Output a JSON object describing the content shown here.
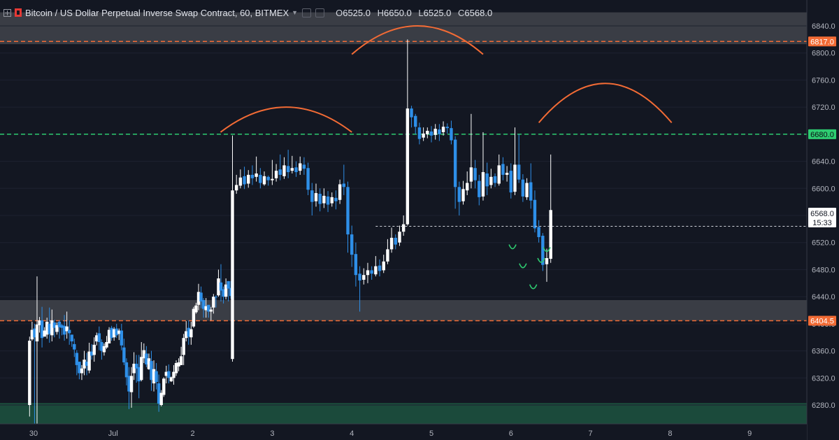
{
  "header": {
    "title": "Bitcoin / US Dollar Perpetual Inverse Swap Contract, 60, BITMEX",
    "ohlc": [
      {
        "k": "O",
        "v": "6525.0"
      },
      {
        "k": "H",
        "v": "6650.0"
      },
      {
        "k": "L",
        "v": "6525.0"
      },
      {
        "k": "C",
        "v": "6568.0"
      }
    ]
  },
  "chart_data": {
    "type": "candlestick",
    "ylim": [
      6250,
      6860
    ],
    "x_range": [
      0,
      10.3
    ],
    "y_ticks": [
      "6840.0",
      "6800.0",
      "6760.0",
      "6720.0",
      "6680.0",
      "6640.0",
      "6600.0",
      "6560.0",
      "6520.0",
      "6480.0",
      "6440.0",
      "6400.0",
      "6360.0",
      "6320.0",
      "6280.0"
    ],
    "y_tick_values": [
      6840,
      6800,
      6760,
      6720,
      6680,
      6640,
      6600,
      6560,
      6520,
      6480,
      6440,
      6400,
      6360,
      6320,
      6280
    ],
    "x_ticks": [
      {
        "t": 0,
        "label": "30"
      },
      {
        "t": 1,
        "label": "Jul"
      },
      {
        "t": 2,
        "label": "2"
      },
      {
        "t": 3,
        "label": "3"
      },
      {
        "t": 4,
        "label": "4"
      },
      {
        "t": 5,
        "label": "5"
      },
      {
        "t": 6,
        "label": "6"
      },
      {
        "t": 7,
        "label": "7"
      },
      {
        "t": 8,
        "label": "8"
      },
      {
        "t": 9,
        "label": "9"
      }
    ],
    "zones": [
      {
        "y1": 6813,
        "y2": 6860,
        "color": "#3a3d45"
      },
      {
        "y1": 6404.5,
        "y2": 6435,
        "color": "#3a3d45"
      },
      {
        "y1": 6250,
        "y2": 6283,
        "color": "#1b4a3b"
      }
    ],
    "hlines": [
      {
        "value": 6817.0,
        "label": "6817.0",
        "color": "#f26b35"
      },
      {
        "value": 6680.0,
        "label": "6680.0",
        "color": "#2ecc71"
      },
      {
        "value": 6404.5,
        "label": "6404.5",
        "color": "#f26b35"
      }
    ],
    "last_price": {
      "value": 6568.0,
      "label": "6568.0",
      "countdown": "15:33"
    },
    "arcs": [
      {
        "t1": 2.35,
        "t2": 4.0,
        "base": 6683,
        "top": 6720
      },
      {
        "t1": 4.0,
        "t2": 5.65,
        "base": 6798,
        "top": 6840
      },
      {
        "t1": 6.35,
        "t2": 8.02,
        "base": 6697,
        "top": 6755
      }
    ],
    "smiles": [
      [
        6.02,
        6517
      ],
      [
        6.15,
        6489
      ],
      [
        6.28,
        6458
      ],
      [
        6.38,
        6497
      ],
      [
        6.45,
        6513
      ]
    ],
    "candles": [
      [
        -0.1,
        6280,
        6375,
        6263,
        6381
      ],
      [
        -0.05,
        6377,
        6391,
        6375,
        6403
      ],
      [
        0.0,
        6393,
        6380,
        6250,
        6400
      ],
      [
        0.05,
        6374,
        6399,
        6240,
        6470
      ],
      [
        0.1,
        6398,
        6405,
        6387,
        6410
      ],
      [
        0.15,
        6405,
        6379,
        6365,
        6425
      ],
      [
        0.2,
        6381,
        6390,
        6382,
        6395
      ],
      [
        0.25,
        6384,
        6403,
        6378,
        6409
      ],
      [
        0.3,
        6400,
        6385,
        6372,
        6424
      ],
      [
        0.35,
        6383,
        6405,
        6374,
        6421
      ],
      [
        0.4,
        6402,
        6394,
        6380,
        6406
      ],
      [
        0.45,
        6388,
        6398,
        6384,
        6402
      ],
      [
        0.5,
        6403,
        6395,
        6378,
        6405
      ],
      [
        0.55,
        6398,
        6394,
        6383,
        6400
      ],
      [
        0.6,
        6397,
        6384,
        6375,
        6413
      ],
      [
        0.65,
        6389,
        6396,
        6378,
        6418
      ],
      [
        0.7,
        6391,
        6386,
        6369,
        6405
      ],
      [
        0.75,
        6384,
        6374,
        6366,
        6378
      ],
      [
        0.8,
        6370,
        6362,
        6351,
        6378
      ],
      [
        0.85,
        6357,
        6339,
        6324,
        6361
      ],
      [
        0.9,
        6344,
        6327,
        6318,
        6341
      ],
      [
        0.95,
        6327,
        6334,
        6317,
        6339
      ],
      [
        1.0,
        6334,
        6347,
        6324,
        6360
      ],
      [
        1.05,
        6344,
        6338,
        6324,
        6357
      ],
      [
        1.1,
        6331,
        6359,
        6327,
        6372
      ],
      [
        1.15,
        6359,
        6353,
        6347,
        6370
      ],
      [
        1.2,
        6354,
        6369,
        6344,
        6380
      ],
      [
        1.25,
        6374,
        6383,
        6368,
        6387
      ],
      [
        1.3,
        6386,
        6373,
        6361,
        6396
      ],
      [
        1.35,
        6373,
        6360,
        6347,
        6377
      ],
      [
        1.4,
        6358,
        6367,
        6353,
        6371
      ],
      [
        1.45,
        6365,
        6373,
        6363,
        6382
      ],
      [
        1.5,
        6371,
        6391,
        6371,
        6395
      ],
      [
        1.55,
        6394,
        6379,
        6375,
        6397
      ],
      [
        1.6,
        6380,
        6392,
        6375,
        6395
      ],
      [
        1.65,
        6393,
        6383,
        6379,
        6400
      ],
      [
        1.7,
        6385,
        6390,
        6376,
        6393
      ],
      [
        1.75,
        6390,
        6368,
        6361,
        6400
      ],
      [
        1.8,
        6365,
        6343,
        6339,
        6378
      ],
      [
        1.85,
        6343,
        6321,
        6309,
        6349
      ],
      [
        1.9,
        6323,
        6300,
        6274,
        6336
      ],
      [
        1.95,
        6299,
        6323,
        6276,
        6336
      ],
      [
        2.0,
        6327,
        6341,
        6317,
        6358
      ],
      [
        2.05,
        6341,
        6334,
        6313,
        6354
      ],
      [
        2.1,
        6336,
        6315,
        6290,
        6354
      ],
      [
        2.15,
        6317,
        6351,
        6315,
        6373
      ],
      [
        2.2,
        6349,
        6361,
        6342,
        6371
      ],
      [
        2.25,
        6356,
        6340,
        6336,
        6367
      ],
      [
        2.3,
        6333,
        6349,
        6332,
        6356
      ],
      [
        2.35,
        6345,
        6317,
        6301,
        6360
      ],
      [
        2.4,
        6312,
        6333,
        6300,
        6346
      ],
      [
        2.45,
        6330,
        6314,
        6303,
        6342
      ],
      [
        2.5,
        6312,
        6282,
        6270,
        6325
      ],
      [
        2.55,
        6280,
        6298,
        6278,
        6302
      ],
      [
        2.6,
        6295,
        6319,
        6292,
        6321
      ],
      [
        2.65,
        6323,
        6329,
        6312,
        6338
      ],
      [
        2.7,
        6330,
        6320,
        6312,
        6340
      ],
      [
        2.75,
        6315,
        6321,
        6314,
        6322
      ],
      [
        2.8,
        6320,
        6329,
        6310,
        6339
      ],
      [
        2.85,
        6327,
        6342,
        6323,
        6346
      ],
      [
        2.9,
        6337,
        6343,
        6330,
        6349
      ],
      [
        2.95,
        6339,
        6352,
        6339,
        6366
      ],
      [
        3.0,
        6354,
        6379,
        6339,
        6385
      ],
      [
        3.05,
        6379,
        6389,
        6374,
        6404
      ],
      [
        3.1,
        6394,
        6381,
        6369,
        6405
      ],
      [
        3.15,
        6380,
        6392,
        6369,
        6403
      ],
      [
        3.2,
        6396,
        6422,
        6394,
        6425
      ],
      [
        3.25,
        6417,
        6427,
        6415,
        6431
      ],
      [
        3.3,
        6428,
        6447,
        6420,
        6459
      ],
      [
        3.35,
        6446,
        6433,
        6423,
        6455
      ],
      [
        3.4,
        6435,
        6422,
        6409,
        6438
      ],
      [
        3.45,
        6420,
        6426,
        6409,
        6438
      ],
      [
        3.5,
        6428,
        6418,
        6409,
        6425
      ],
      [
        3.55,
        6418,
        6421,
        6405,
        6425
      ],
      [
        3.6,
        6424,
        6440,
        6415,
        6444
      ],
      [
        3.65,
        6440,
        6439,
        6424,
        6442
      ],
      [
        3.7,
        6442,
        6467,
        6440,
        6480
      ],
      [
        3.75,
        6461,
        6449,
        6433,
        6488
      ],
      [
        3.8,
        6451,
        6440,
        6430,
        6455
      ],
      [
        3.85,
        6440,
        6458,
        6436,
        6467
      ],
      [
        3.9,
        6463,
        6452,
        6433,
        6463
      ],
      [
        3.95,
        6453,
        6441,
        6437,
        6463
      ]
    ],
    "candles_b": [
      [
        2.5,
        6348,
        6597,
        6344,
        6678
      ],
      [
        2.55,
        6597,
        6605,
        6592,
        6620
      ],
      [
        2.6,
        6604,
        6616,
        6600,
        6628
      ],
      [
        2.65,
        6618,
        6606,
        6599,
        6632
      ],
      [
        2.7,
        6607,
        6620,
        6601,
        6627
      ],
      [
        2.75,
        6620,
        6615,
        6605,
        6634
      ],
      [
        2.8,
        6617,
        6622,
        6610,
        6647
      ],
      [
        2.85,
        6620,
        6608,
        6600,
        6630
      ],
      [
        2.9,
        6606,
        6618,
        6604,
        6625
      ],
      [
        2.95,
        6617,
        6612,
        6604,
        6619
      ],
      [
        3.0,
        6612,
        6614,
        6605,
        6642
      ],
      [
        3.05,
        6615,
        6626,
        6610,
        6636
      ],
      [
        3.1,
        6628,
        6620,
        6612,
        6650
      ],
      [
        3.15,
        6618,
        6634,
        6614,
        6646
      ],
      [
        3.2,
        6633,
        6624,
        6615,
        6657
      ],
      [
        3.25,
        6626,
        6630,
        6622,
        6648
      ],
      [
        3.3,
        6631,
        6624,
        6617,
        6640
      ],
      [
        3.35,
        6626,
        6637,
        6620,
        6647
      ],
      [
        3.4,
        6635,
        6629,
        6620,
        6646
      ],
      [
        3.45,
        6630,
        6598,
        6590,
        6638
      ],
      [
        3.5,
        6597,
        6580,
        6560,
        6608
      ],
      [
        3.55,
        6581,
        6593,
        6573,
        6607
      ],
      [
        3.6,
        6592,
        6577,
        6566,
        6600
      ],
      [
        3.65,
        6578,
        6589,
        6571,
        6600
      ],
      [
        3.7,
        6588,
        6576,
        6565,
        6596
      ],
      [
        3.75,
        6578,
        6587,
        6573,
        6594
      ],
      [
        3.8,
        6586,
        6581,
        6569,
        6597
      ],
      [
        3.85,
        6583,
        6606,
        6577,
        6613
      ],
      [
        3.9,
        6607,
        6602,
        6590,
        6635
      ],
      [
        3.95,
        6602,
        6532,
        6505,
        6610
      ],
      [
        4.0,
        6532,
        6502,
        6484,
        6545
      ],
      [
        4.05,
        6503,
        6472,
        6455,
        6520
      ],
      [
        4.1,
        6474,
        6464,
        6418,
        6485
      ],
      [
        4.15,
        6465,
        6472,
        6458,
        6482
      ],
      [
        4.2,
        6472,
        6479,
        6460,
        6490
      ],
      [
        4.25,
        6479,
        6474,
        6465,
        6485
      ],
      [
        4.3,
        6473,
        6485,
        6470,
        6500
      ],
      [
        4.35,
        6486,
        6478,
        6470,
        6495
      ],
      [
        4.4,
        6479,
        6492,
        6475,
        6502
      ],
      [
        4.45,
        6492,
        6510,
        6488,
        6525
      ],
      [
        4.5,
        6510,
        6527,
        6505,
        6542
      ],
      [
        4.55,
        6527,
        6517,
        6510,
        6532
      ],
      [
        4.6,
        6520,
        6536,
        6515,
        6545
      ],
      [
        4.65,
        6536,
        6547,
        6530,
        6560
      ],
      [
        4.7,
        6547,
        6718,
        6545,
        6820
      ],
      [
        4.75,
        6718,
        6705,
        6690,
        6722
      ],
      [
        4.8,
        6707,
        6691,
        6680,
        6710
      ],
      [
        4.85,
        6690,
        6673,
        6665,
        6697
      ],
      [
        4.9,
        6675,
        6681,
        6670,
        6690
      ],
      [
        4.95,
        6680,
        6685,
        6674,
        6690
      ],
      [
        5.0,
        6684,
        6678,
        6668,
        6692
      ],
      [
        5.05,
        6679,
        6688,
        6672,
        6695
      ],
      [
        5.1,
        6687,
        6680,
        6670,
        6695
      ],
      [
        5.15,
        6683,
        6691,
        6678,
        6699
      ],
      [
        5.2,
        6691,
        6689,
        6681,
        6696
      ],
      [
        5.25,
        6689,
        6671,
        6665,
        6700
      ],
      [
        5.3,
        6672,
        6602,
        6570,
        6677
      ],
      [
        5.35,
        6602,
        6580,
        6560,
        6610
      ],
      [
        5.4,
        6581,
        6599,
        6576,
        6611
      ],
      [
        5.45,
        6597,
        6608,
        6590,
        6625
      ],
      [
        5.5,
        6610,
        6631,
        6600,
        6710
      ],
      [
        5.55,
        6630,
        6612,
        6600,
        6642
      ],
      [
        5.6,
        6611,
        6587,
        6575,
        6620
      ],
      [
        5.65,
        6588,
        6624,
        6582,
        6683
      ],
      [
        5.7,
        6622,
        6603,
        6590,
        6638
      ],
      [
        5.75,
        6605,
        6617,
        6600,
        6629
      ],
      [
        5.8,
        6618,
        6608,
        6602,
        6622
      ],
      [
        5.85,
        6607,
        6634,
        6604,
        6650
      ],
      [
        5.9,
        6636,
        6620,
        6612,
        6646
      ],
      [
        5.95,
        6620,
        6623,
        6610,
        6633
      ],
      [
        6.0,
        6626,
        6594,
        6585,
        6637
      ],
      [
        6.05,
        6595,
        6635,
        6590,
        6690
      ],
      [
        6.1,
        6635,
        6613,
        6608,
        6680
      ],
      [
        6.15,
        6613,
        6588,
        6580,
        6621
      ],
      [
        6.2,
        6587,
        6608,
        6583,
        6615
      ],
      [
        6.25,
        6609,
        6582,
        6570,
        6637
      ],
      [
        6.3,
        6583,
        6541,
        6535,
        6597
      ],
      [
        6.35,
        6543,
        6528,
        6520,
        6553
      ],
      [
        6.4,
        6530,
        6487,
        6478,
        6534
      ],
      [
        6.45,
        6488,
        6497,
        6462,
        6511
      ],
      [
        6.5,
        6496,
        6538,
        6490,
        6546
      ]
    ]
  }
}
